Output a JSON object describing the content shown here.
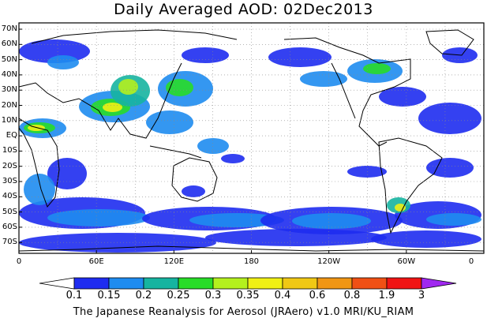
{
  "title": "Daily Averaged AOD: 02Dec2013",
  "credit": "The Japanese Reanalysis for Aerosol (JRAero) v1.0 MRI/KU_RIAM",
  "lat_labels": [
    "70N",
    "60N",
    "50N",
    "40N",
    "30N",
    "20N",
    "10N",
    "EQ",
    "10S",
    "20S",
    "30S",
    "40S",
    "50S",
    "60S",
    "70S"
  ],
  "lon_labels": [
    "0",
    "60E",
    "120E",
    "180",
    "120W",
    "60W",
    "0"
  ],
  "colorbar": {
    "levels": [
      "0.1",
      "0.15",
      "0.2",
      "0.25",
      "0.3",
      "0.35",
      "0.4",
      "0.6",
      "0.8",
      "1.9",
      "3"
    ],
    "colors": [
      "#ffffff",
      "#1e2cf0",
      "#1e8cf0",
      "#16b4a0",
      "#28dc28",
      "#b4f01e",
      "#f0f014",
      "#f0c814",
      "#f09614",
      "#f05014",
      "#f01414",
      "#a028f0"
    ]
  },
  "aod_colors": [
    "#1e2cf0",
    "#1e8cf0",
    "#16b4a0",
    "#28dc28",
    "#b4f01e",
    "#f0f014",
    "#f0c814",
    "#f09614"
  ]
}
